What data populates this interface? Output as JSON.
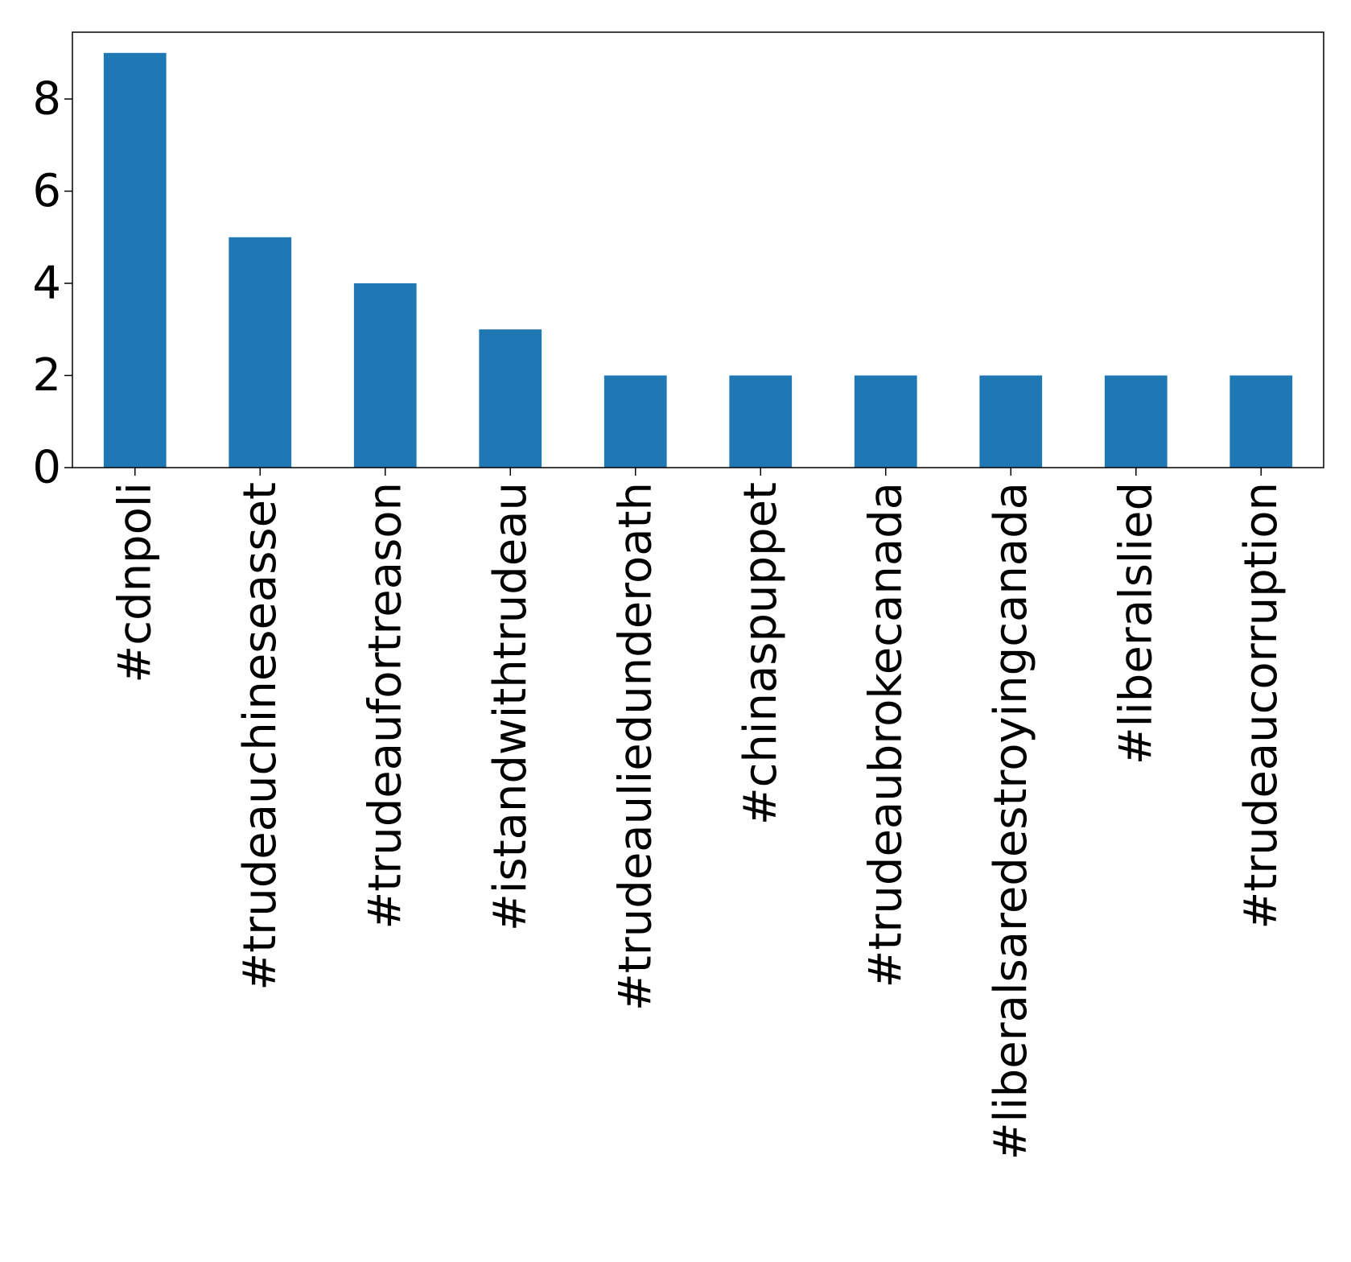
{
  "chart_data": {
    "type": "bar",
    "categories": [
      "#cdnpoli",
      "#trudeauchineseasset",
      "#trudeaufortreason",
      "#istandwithtrudeau",
      "#trudeauliedunderoath",
      "#chinaspuppet",
      "#trudeaubrokecanada",
      "#liberalsaredestroyingcanada",
      "#liberalslied",
      "#trudeaucorruption"
    ],
    "values": [
      9,
      5,
      4,
      3,
      2,
      2,
      2,
      2,
      2,
      2
    ],
    "title": "",
    "xlabel": "",
    "ylabel": "",
    "ylim": [
      0,
      9.45
    ],
    "yticks": [
      "0",
      "2",
      "4",
      "6",
      "8"
    ],
    "bar_color": "#1f77b4",
    "grid": false,
    "legend": "none"
  }
}
